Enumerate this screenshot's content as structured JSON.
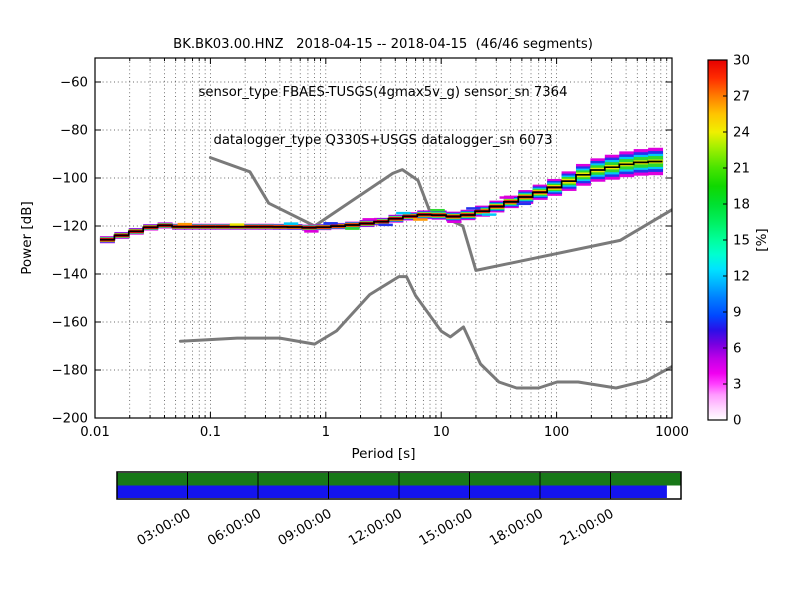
{
  "titles": {
    "line1": "BK.BK03.00.HNZ   2018-04-15 -- 2018-04-15  (46/46 segments)",
    "line2": "sensor_type FBAES-TUSGS(4gmax5v_g) sensor_sn 7364",
    "line3": "datalogger_type Q330S+USGS datalogger_sn 6073"
  },
  "chart_data": {
    "type": "heatmap",
    "title": "BK.BK03.00.HNZ 2018-04-15 -- 2018-04-15 (46/46 segments)",
    "subtitle1": "sensor_type FBAES-TUSGS(4gmax5v_g) sensor_sn 7364",
    "subtitle2": "datalogger_type Q330S+USGS datalogger_sn 6073",
    "xlabel": "Period [s]",
    "ylabel": "Power [dB]",
    "colorbar_label": "[%]",
    "xscale": "log",
    "xlim": [
      0.01,
      1000
    ],
    "ylim": [
      -200,
      -50
    ],
    "grid": true,
    "x_ticks": [
      0.01,
      0.1,
      1,
      10,
      100,
      1000
    ],
    "x_tick_labels": [
      "0.01",
      "0.1",
      "1",
      "10",
      "100",
      "1000"
    ],
    "y_ticks": [
      -60,
      -80,
      -100,
      -120,
      -140,
      -160,
      -180,
      -200
    ],
    "y_tick_labels": [
      "−60",
      "−80",
      "−100",
      "−120",
      "−140",
      "−160",
      "−180",
      "−200"
    ],
    "colorbar_ticks": [
      0,
      3,
      6,
      9,
      12,
      15,
      18,
      21,
      24,
      27,
      30
    ],
    "colorbar_range": [
      0,
      30
    ],
    "colorbar_gradient": [
      [
        0.0,
        "#ffffff"
      ],
      [
        0.035,
        "#ffd2ff"
      ],
      [
        0.07,
        "#ff9aff"
      ],
      [
        0.1,
        "#ff40ff"
      ],
      [
        0.13,
        "#f000f0"
      ],
      [
        0.17,
        "#c000e8"
      ],
      [
        0.21,
        "#7800e0"
      ],
      [
        0.25,
        "#2a10e8"
      ],
      [
        0.29,
        "#0048ff"
      ],
      [
        0.34,
        "#0080ff"
      ],
      [
        0.38,
        "#00b4ff"
      ],
      [
        0.42,
        "#00e4ff"
      ],
      [
        0.46,
        "#00ffd0"
      ],
      [
        0.5,
        "#00ff9c"
      ],
      [
        0.55,
        "#00f060"
      ],
      [
        0.6,
        "#00e030"
      ],
      [
        0.65,
        "#10d800"
      ],
      [
        0.7,
        "#48e400"
      ],
      [
        0.76,
        "#a8f000"
      ],
      [
        0.8,
        "#f0f000"
      ],
      [
        0.85,
        "#ffc400"
      ],
      [
        0.9,
        "#ff7c00"
      ],
      [
        0.95,
        "#ff2c00"
      ],
      [
        1.0,
        "#e60000"
      ]
    ],
    "bins_per_decade": 8,
    "band_log_start": -1.957,
    "band_bins": 39,
    "psd_median": [
      [
        0.011,
        -126.6
      ],
      [
        0.013,
        -125.6
      ],
      [
        0.016,
        -124.3
      ],
      [
        0.02,
        -122.9
      ],
      [
        0.025,
        -121.7
      ],
      [
        0.03,
        -120.6
      ],
      [
        0.036,
        -119.4
      ],
      [
        0.042,
        -119.9
      ],
      [
        0.05,
        -120.3
      ],
      [
        0.1,
        -120.3
      ],
      [
        0.3,
        -120.3
      ],
      [
        0.55,
        -120.4
      ],
      [
        0.8,
        -120.8
      ],
      [
        1.0,
        -120.4
      ],
      [
        1.4,
        -119.9
      ],
      [
        2.0,
        -119.3
      ],
      [
        3.0,
        -118.2
      ],
      [
        4.0,
        -117.0
      ],
      [
        5.0,
        -116.2
      ],
      [
        6.5,
        -115.4
      ],
      [
        8.0,
        -115.2
      ],
      [
        10.0,
        -115.5
      ],
      [
        13.0,
        -116.1
      ],
      [
        16.0,
        -115.7
      ],
      [
        20.0,
        -114.6
      ],
      [
        25.0,
        -113.2
      ],
      [
        32.0,
        -111.5
      ],
      [
        40.0,
        -110.0
      ],
      [
        50.0,
        -108.4
      ],
      [
        65.0,
        -106.6
      ],
      [
        80.0,
        -105.2
      ],
      [
        100.0,
        -103.6
      ],
      [
        125.0,
        -101.5
      ],
      [
        160.0,
        -99.2
      ],
      [
        200.0,
        -97.3
      ],
      [
        250.0,
        -96.2
      ],
      [
        320.0,
        -95.3
      ],
      [
        400.0,
        -94.3
      ],
      [
        500.0,
        -93.6
      ],
      [
        650.0,
        -93.2
      ],
      [
        830.0,
        -93.0
      ]
    ],
    "band_layer_colors": [
      "#dd00dd",
      "#2233ee",
      "#00c8f8",
      "#2dd82d",
      "#e8e800",
      "#dd1111"
    ],
    "band_widths": [
      [
        0.011,
        [
          1.5,
          1.2,
          1.05,
          0.95,
          0.85,
          0.72
        ]
      ],
      [
        0.05,
        [
          1.25,
          1.05,
          0.95,
          0.85,
          0.78,
          0.68
        ]
      ],
      [
        1.0,
        [
          1.25,
          1.05,
          0.95,
          0.85,
          0.78,
          0.68
        ]
      ],
      [
        5.0,
        [
          1.7,
          1.35,
          1.15,
          1.0,
          0.88,
          0.72
        ]
      ],
      [
        15.0,
        [
          2.1,
          1.65,
          1.35,
          1.15,
          0.95,
          0.72
        ]
      ],
      [
        40.0,
        [
          2.6,
          2.0,
          1.6,
          1.3,
          1.0,
          0.7
        ]
      ],
      [
        90.0,
        [
          3.4,
          2.6,
          2.0,
          1.5,
          1.0,
          0.55
        ]
      ],
      [
        150.0,
        [
          4.4,
          3.4,
          2.5,
          1.8,
          1.0,
          0.3
        ]
      ],
      [
        300.0,
        [
          5.2,
          4.0,
          3.0,
          2.1,
          0.9,
          0.0
        ]
      ],
      [
        830.0,
        [
          5.8,
          4.4,
          3.2,
          2.3,
          0.8,
          0.0
        ]
      ]
    ],
    "specks": [
      [
        0.06,
        1.1,
        "#ff9900"
      ],
      [
        0.17,
        0.9,
        "#e8e800"
      ],
      [
        0.5,
        1.4,
        "#00c8f8"
      ],
      [
        0.75,
        -1.5,
        "#dd00dd"
      ],
      [
        1.1,
        1.4,
        "#2233ee"
      ],
      [
        1.7,
        -1.5,
        "#2dd82d"
      ],
      [
        2.4,
        1.6,
        "#dd00dd"
      ],
      [
        3.3,
        -1.7,
        "#2233ee"
      ],
      [
        4.7,
        1.8,
        "#00c8f8"
      ],
      [
        6.6,
        -1.9,
        "#ff9900"
      ],
      [
        9.3,
        2.0,
        "#2dd82d"
      ],
      [
        13,
        -2.1,
        "#dd00dd"
      ],
      [
        19,
        2.2,
        "#2233ee"
      ],
      [
        26,
        -2.3,
        "#00c8f8"
      ],
      [
        37,
        2.4,
        "#dd00dd"
      ],
      [
        52,
        -2.6,
        "#2233ee"
      ]
    ],
    "noise_models": {
      "color": "#7a7a7a",
      "nhnm": [
        [
          0.1,
          -91.5
        ],
        [
          0.22,
          -97.4
        ],
        [
          0.32,
          -110.5
        ],
        [
          0.8,
          -120.0
        ],
        [
          3.8,
          -98.1
        ],
        [
          4.6,
          -96.5
        ],
        [
          6.3,
          -101.0
        ],
        [
          7.9,
          -113.5
        ],
        [
          15.4,
          -120.0
        ],
        [
          20,
          -138.5
        ],
        [
          354.8,
          -126.0
        ],
        [
          1000,
          -113.2
        ]
      ],
      "nlnm": [
        [
          0.055,
          -168.0
        ],
        [
          0.17,
          -166.7
        ],
        [
          0.4,
          -166.7
        ],
        [
          0.8,
          -169.2
        ],
        [
          1.24,
          -163.7
        ],
        [
          2.4,
          -148.6
        ],
        [
          4.3,
          -141.1
        ],
        [
          5,
          -141.1
        ],
        [
          6,
          -149.0
        ],
        [
          10,
          -163.8
        ],
        [
          12,
          -166.2
        ],
        [
          15.6,
          -162.1
        ],
        [
          21.9,
          -177.5
        ],
        [
          31.6,
          -185.0
        ],
        [
          45,
          -187.5
        ],
        [
          70,
          -187.5
        ],
        [
          101,
          -185.0
        ],
        [
          154,
          -185.0
        ],
        [
          328,
          -187.5
        ],
        [
          600,
          -184.4
        ],
        [
          1000,
          -178.6
        ]
      ]
    }
  },
  "timeline": {
    "hours": [
      0,
      24
    ],
    "tick_hours": [
      3,
      6,
      9,
      12,
      15,
      18,
      21
    ],
    "tick_labels": [
      "03:00:00",
      "06:00:00",
      "09:00:00",
      "12:00:00",
      "15:00:00",
      "18:00:00",
      "21:00:00"
    ],
    "green_color": "#187818",
    "blue_color": "#1414ee",
    "green_segments": [
      [
        0,
        24
      ]
    ],
    "blue_segments": [
      [
        0,
        23.4
      ]
    ]
  }
}
